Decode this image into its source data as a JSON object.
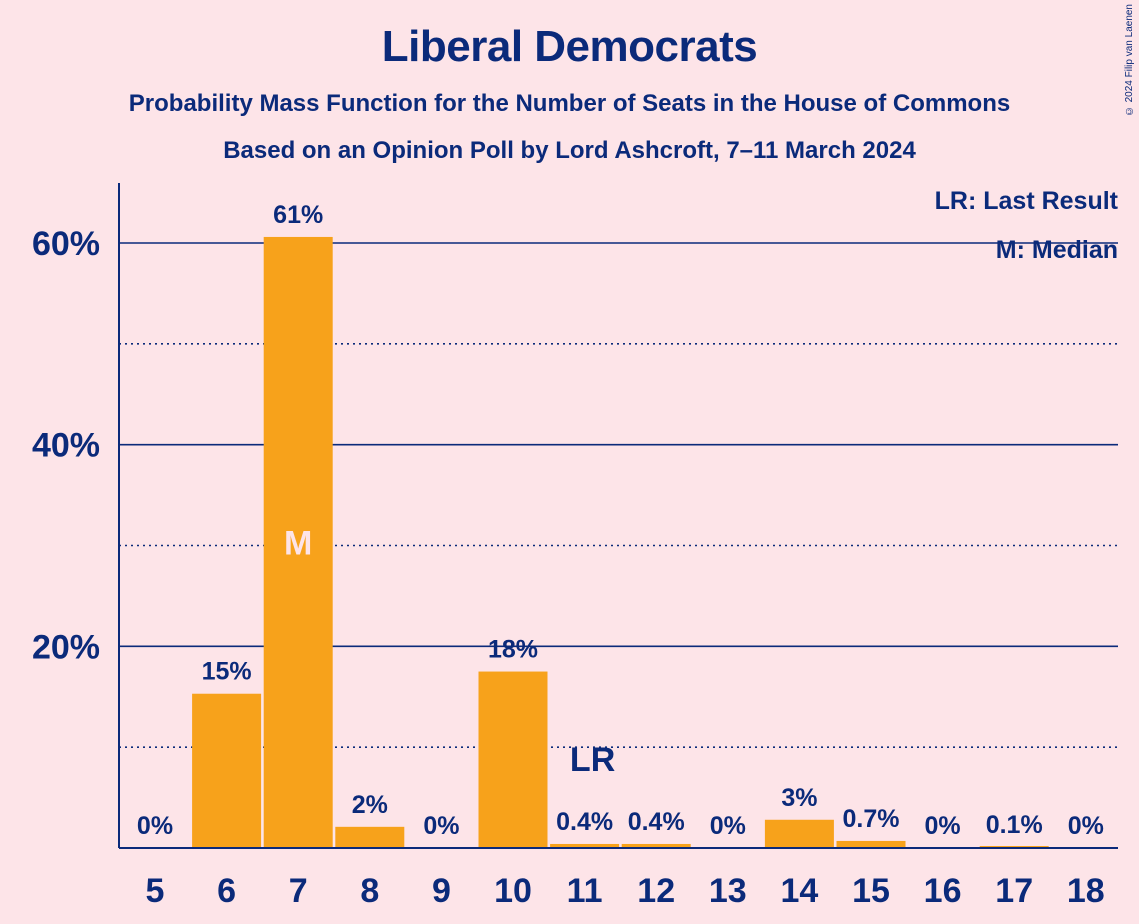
{
  "header": {
    "title": "Liberal Democrats",
    "subtitle": "Probability Mass Function for the Number of Seats in the House of Commons",
    "subtitle2": "Based on an Opinion Poll by Lord Ashcroft, 7–11 March 2024",
    "copyright": "© 2024 Filip van Laenen"
  },
  "legend": {
    "last_result": "LR: Last Result",
    "median": "M: Median"
  },
  "colors": {
    "background": "#fde4e8",
    "bar": "#f7a21b",
    "text": "#0b2a7a"
  },
  "chart_data": {
    "type": "bar",
    "categories": [
      "5",
      "6",
      "7",
      "8",
      "9",
      "10",
      "11",
      "12",
      "13",
      "14",
      "15",
      "16",
      "17",
      "18"
    ],
    "values": [
      0,
      15.3,
      60.6,
      2.1,
      0,
      17.5,
      0.4,
      0.4,
      0,
      2.8,
      0.7,
      0,
      0.1,
      0
    ],
    "data_labels": [
      "0%",
      "15%",
      "61%",
      "2%",
      "0%",
      "18%",
      "0.4%",
      "0.4%",
      "0%",
      "3%",
      "0.7%",
      "0%",
      "0.1%",
      "0%"
    ],
    "ylim": [
      0,
      66
    ],
    "y_ticks": [
      {
        "value": 20,
        "label": "20%"
      },
      {
        "value": 40,
        "label": "40%"
      },
      {
        "value": 60,
        "label": "60%"
      }
    ],
    "minor_gridlines": [
      10,
      30,
      50
    ],
    "median_index": 2,
    "median_marker": "M",
    "last_result_index": 6,
    "last_result_marker": "LR",
    "legend_position": "top-right"
  }
}
